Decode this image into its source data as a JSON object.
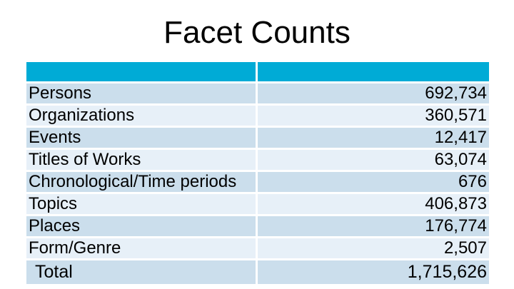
{
  "slide": {
    "title": "Facet Counts"
  },
  "table": {
    "header": {
      "facet_label": "",
      "count_label": ""
    },
    "rows": [
      {
        "label": "Persons",
        "value": "692,734"
      },
      {
        "label": "Organizations",
        "value": "360,571"
      },
      {
        "label": "Events",
        "value": "12,417"
      },
      {
        "label": "Titles of Works",
        "value": "63,074"
      },
      {
        "label": "Chronological/Time periods",
        "value": "676"
      },
      {
        "label": "Topics",
        "value": "406,873"
      },
      {
        "label": "Places",
        "value": "176,774"
      },
      {
        "label": "Form/Genre",
        "value": "2,507"
      },
      {
        "label": "Total",
        "value": "1,715,626"
      }
    ]
  },
  "colors": {
    "header_bg": "#00abd6",
    "row_band_dark": "#cbdeec",
    "row_band_light": "#e7f0f8",
    "text": "#000000",
    "background": "#ffffff"
  }
}
